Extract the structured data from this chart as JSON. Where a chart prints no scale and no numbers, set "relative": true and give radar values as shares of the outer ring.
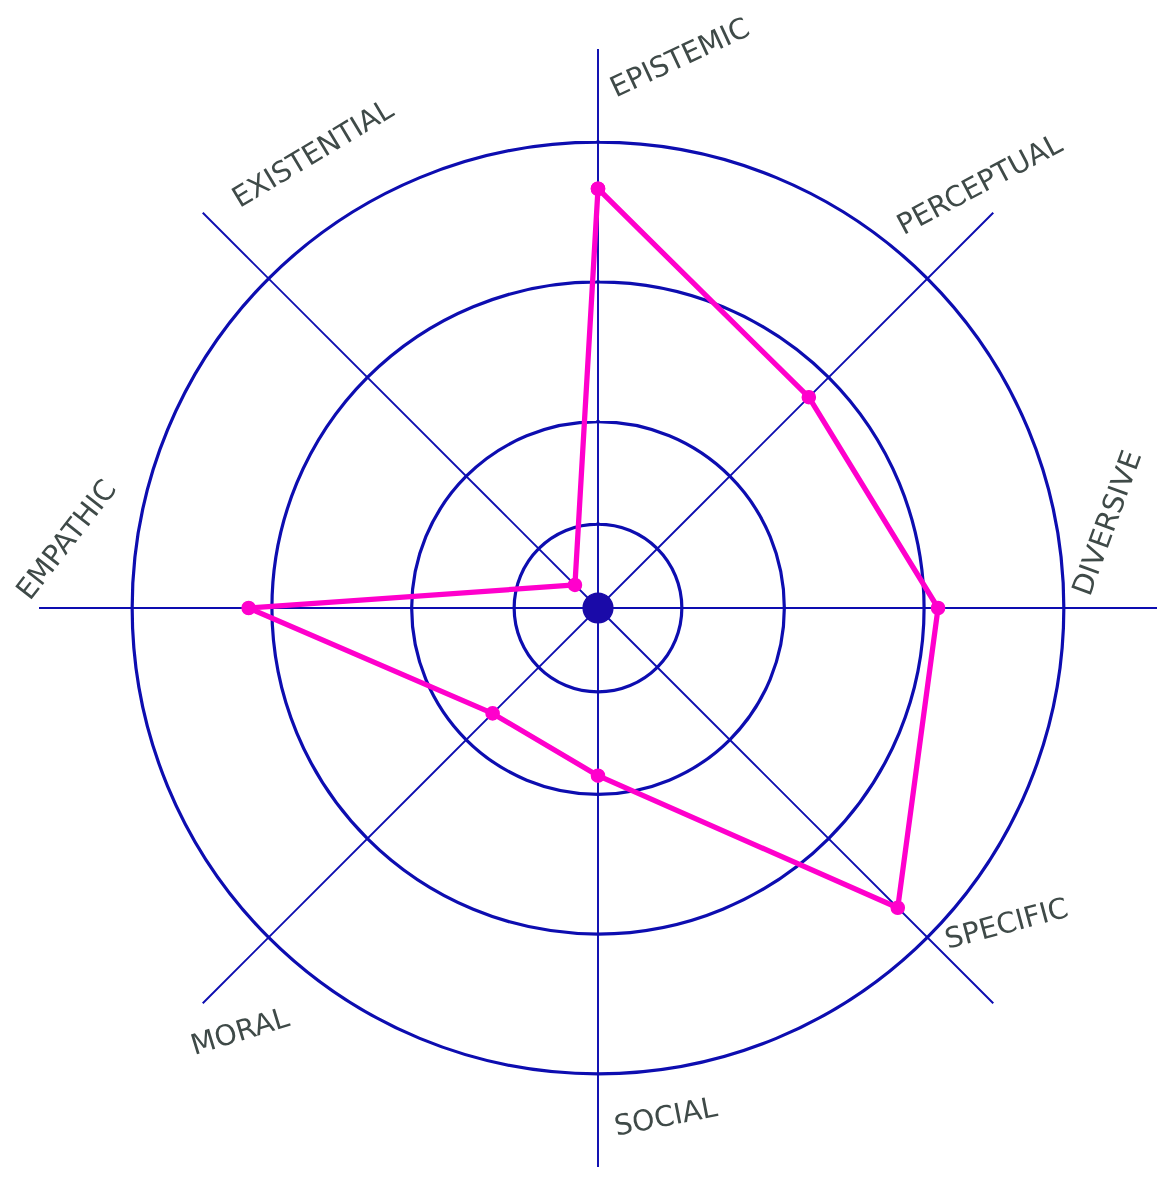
{
  "chart_data": {
    "type": "radar",
    "categories": [
      "EPISTEMIC",
      "PERCEPTUAL",
      "DIVERSIVE",
      "SPECIFIC",
      "SOCIAL",
      "MORAL",
      "EMPATHIC",
      "EXISTENTIAL"
    ],
    "series": [
      {
        "color": "#ff00cc",
        "values": [
          0.9,
          0.64,
          0.73,
          0.91,
          0.36,
          0.32,
          0.75,
          0.07
        ]
      }
    ],
    "relative": true,
    "grid": true,
    "marker": "circle",
    "line_style": "solid"
  }
}
